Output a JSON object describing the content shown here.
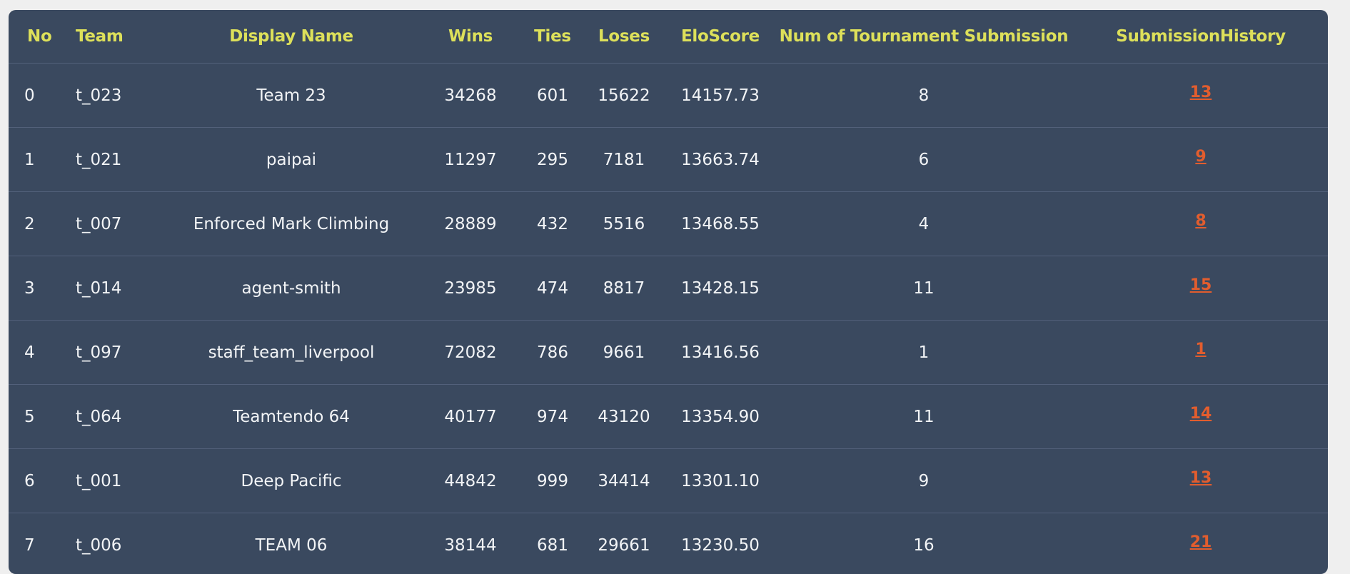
{
  "headers": {
    "no": "No",
    "team": "Team",
    "display_name": "Display Name",
    "wins": "Wins",
    "ties": "Ties",
    "loses": "Loses",
    "elo": "EloScore",
    "num_submission": "Num of Tournament Submission",
    "history": "SubmissionHistory"
  },
  "rows": [
    {
      "no": "0",
      "team": "t_023",
      "display_name": "Team 23",
      "wins": "34268",
      "ties": "601",
      "loses": "15622",
      "elo": "14157.73",
      "num_submission": "8",
      "history": "13"
    },
    {
      "no": "1",
      "team": "t_021",
      "display_name": "paipai",
      "wins": "11297",
      "ties": "295",
      "loses": "7181",
      "elo": "13663.74",
      "num_submission": "6",
      "history": "9"
    },
    {
      "no": "2",
      "team": "t_007",
      "display_name": "Enforced Mark Climbing",
      "wins": "28889",
      "ties": "432",
      "loses": "5516",
      "elo": "13468.55",
      "num_submission": "4",
      "history": "8"
    },
    {
      "no": "3",
      "team": "t_014",
      "display_name": "agent-smith",
      "wins": "23985",
      "ties": "474",
      "loses": "8817",
      "elo": "13428.15",
      "num_submission": "11",
      "history": "15"
    },
    {
      "no": "4",
      "team": "t_097",
      "display_name": "staff_team_liverpool",
      "wins": "72082",
      "ties": "786",
      "loses": "9661",
      "elo": "13416.56",
      "num_submission": "1",
      "history": "1"
    },
    {
      "no": "5",
      "team": "t_064",
      "display_name": "Teamtendo 64",
      "wins": "40177",
      "ties": "974",
      "loses": "43120",
      "elo": "13354.90",
      "num_submission": "11",
      "history": "14"
    },
    {
      "no": "6",
      "team": "t_001",
      "display_name": "Deep Pacific",
      "wins": "44842",
      "ties": "999",
      "loses": "34414",
      "elo": "13301.10",
      "num_submission": "9",
      "history": "13"
    },
    {
      "no": "7",
      "team": "t_006",
      "display_name": "TEAM 06",
      "wins": "38144",
      "ties": "681",
      "loses": "29661",
      "elo": "13230.50",
      "num_submission": "16",
      "history": "21"
    }
  ]
}
